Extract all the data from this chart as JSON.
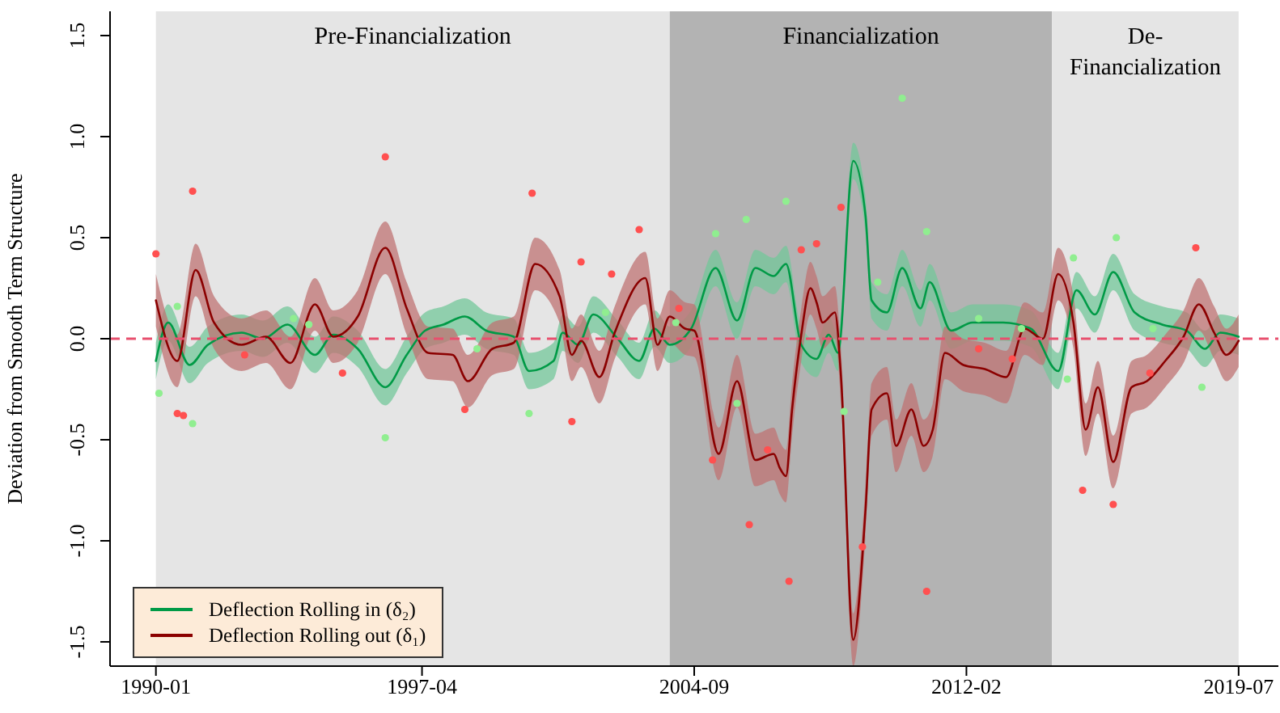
{
  "chart_data": {
    "type": "line",
    "ylabel": "Deviation from Smooth Term Structure",
    "xlim": [
      "1988-10",
      "2020-08"
    ],
    "xticks": [
      "1990-01",
      "1997-04",
      "2004-09",
      "2012-02",
      "2019-07"
    ],
    "ylim": [
      -1.62,
      1.62
    ],
    "yticks": [
      {
        "value": -1.5,
        "label": "-1.5"
      },
      {
        "value": -1,
        "label": "-1.0"
      },
      {
        "value": -0.5,
        "label": "-0.5"
      },
      {
        "value": 0,
        "label": "0.0"
      },
      {
        "value": 0.5,
        "label": "0.5"
      },
      {
        "value": 1,
        "label": "1.0"
      },
      {
        "value": 1.5,
        "label": "1.5"
      }
    ],
    "legend": "bottom left",
    "marker": "none",
    "line_style": "solid",
    "bands": [
      {
        "axis": "x",
        "from": "1990-01",
        "to": "2004-01",
        "label": "Pre-Financialization",
        "color": "#e5e5e5"
      },
      {
        "axis": "x",
        "from": "2004-01",
        "to": "2014-06",
        "label": "Financialization",
        "color": "#b3b3b3"
      },
      {
        "axis": "x",
        "from": "2014-06",
        "to": "2019-07",
        "label": "De-Financialization",
        "color": "#e5e5e5"
      }
    ],
    "ref_lines": [
      {
        "axis": "y",
        "value": 0,
        "color": "#e8506e",
        "line_style": "dashed"
      }
    ],
    "series": [
      {
        "name": "Deflection Rolling in (δ₂)",
        "color": "#009a46",
        "x": [
          "1990-01",
          "1990-05",
          "1990-12",
          "1991-06",
          "1992-05",
          "1992-12",
          "1993-08",
          "1994-05",
          "1994-11",
          "1995-07",
          "1996-04",
          "1996-11",
          "1997-05",
          "1997-11",
          "1998-06",
          "1999-01",
          "1999-10",
          "2000-03",
          "2000-11",
          "2001-02",
          "2001-07",
          "2001-12",
          "2002-08",
          "2003-03",
          "2003-08",
          "2004-01",
          "2004-08",
          "2005-04",
          "2005-11",
          "2006-05",
          "2006-11",
          "2007-03",
          "2007-08",
          "2008-01",
          "2008-05",
          "2008-08",
          "2009-01",
          "2009-05",
          "2009-07",
          "2009-12",
          "2010-05",
          "2010-11",
          "2011-02",
          "2011-09",
          "2012-04",
          "2013-02",
          "2013-11",
          "2014-08",
          "2015-02",
          "2015-08",
          "2016-02",
          "2016-09",
          "2017-06",
          "2018-02",
          "2018-08",
          "2019-01",
          "2019-07"
        ],
        "values": [
          -0.11,
          0.08,
          -0.13,
          -0.03,
          0.03,
          0,
          0.07,
          -0.08,
          0.02,
          -0.05,
          -0.24,
          -0.08,
          0.04,
          0.07,
          0.11,
          0.04,
          0.01,
          -0.16,
          -0.11,
          0.03,
          -0.03,
          0.12,
          0,
          -0.11,
          0.05,
          -0.03,
          0.05,
          0.35,
          0.09,
          0.35,
          0.31,
          0.37,
          -0.03,
          -0.1,
          0.02,
          -0.07,
          0.88,
          0.61,
          0.19,
          0.13,
          0.35,
          0.15,
          0.28,
          0.04,
          0.08,
          0.08,
          0.05,
          -0.16,
          0.24,
          0.12,
          0.33,
          0.13,
          0.07,
          0.04,
          -0.05,
          0.03,
          0.01
        ],
        "lower": [
          -0.2,
          -0.01,
          -0.22,
          -0.12,
          -0.06,
          -0.09,
          -0.02,
          -0.17,
          -0.07,
          -0.14,
          -0.33,
          -0.17,
          -0.05,
          -0.02,
          0.02,
          -0.05,
          -0.08,
          -0.25,
          -0.2,
          -0.06,
          -0.12,
          0.03,
          -0.09,
          -0.2,
          -0.04,
          -0.12,
          -0.04,
          0.26,
          0,
          0.26,
          0.22,
          0.28,
          -0.12,
          -0.19,
          -0.07,
          -0.16,
          0.79,
          0.52,
          0.1,
          0.04,
          0.26,
          0.06,
          0.19,
          -0.05,
          -0.01,
          -0.01,
          -0.04,
          -0.25,
          0.15,
          0.03,
          0.24,
          0.04,
          -0.02,
          -0.05,
          -0.14,
          -0.06,
          -0.08
        ],
        "upper": [
          -0.02,
          0.17,
          -0.04,
          0.06,
          0.12,
          0.09,
          0.16,
          0.01,
          0.11,
          0.04,
          -0.15,
          0.01,
          0.13,
          0.16,
          0.2,
          0.13,
          0.1,
          -0.07,
          -0.02,
          0.12,
          0.06,
          0.21,
          0.09,
          -0.02,
          0.14,
          0.06,
          0.14,
          0.44,
          0.18,
          0.44,
          0.4,
          0.46,
          0.06,
          -0.01,
          0.11,
          0.02,
          0.97,
          0.7,
          0.28,
          0.22,
          0.44,
          0.24,
          0.37,
          0.13,
          0.17,
          0.17,
          0.14,
          -0.07,
          0.33,
          0.21,
          0.42,
          0.22,
          0.16,
          0.13,
          0.04,
          0.12,
          0.1
        ]
      },
      {
        "name": "Deflection Rolling out (δ₁)",
        "color": "#8b0000",
        "x": [
          "1990-01",
          "1990-08",
          "1991-02",
          "1991-08",
          "1992-05",
          "1993-01",
          "1993-09",
          "1994-05",
          "1994-11",
          "1995-07",
          "1996-04",
          "1996-11",
          "1997-06",
          "1998-02",
          "1998-07",
          "1999-03",
          "1999-10",
          "2000-05",
          "2001-01",
          "2001-05",
          "2001-08",
          "2002-02",
          "2002-07",
          "2003-05",
          "2003-09",
          "2004-01",
          "2004-06",
          "2004-09",
          "2005-05",
          "2005-11",
          "2006-05",
          "2006-11",
          "2007-01",
          "2007-03",
          "2007-05",
          "2007-08",
          "2007-11",
          "2008-01",
          "2008-03",
          "2008-07",
          "2008-09",
          "2009-01",
          "2009-05",
          "2009-07",
          "2009-12",
          "2010-03",
          "2010-08",
          "2010-12",
          "2011-03",
          "2011-07",
          "2012-01",
          "2012-08",
          "2013-03",
          "2013-09",
          "2014-03",
          "2014-08",
          "2015-01",
          "2015-05",
          "2015-09",
          "2016-02",
          "2016-08",
          "2017-01",
          "2017-07",
          "2018-01",
          "2018-06",
          "2018-11",
          "2019-03",
          "2019-07"
        ],
        "values": [
          0.19,
          -0.11,
          0.34,
          0.08,
          -0.03,
          0.01,
          -0.12,
          0.17,
          0.01,
          0.11,
          0.45,
          0.15,
          -0.07,
          -0.08,
          -0.21,
          -0.05,
          -0.02,
          0.37,
          0.21,
          -0.08,
          -0.01,
          -0.19,
          0.03,
          0.3,
          -0.03,
          0.11,
          0.05,
          0.04,
          -0.57,
          -0.21,
          -0.6,
          -0.57,
          -0.64,
          -0.68,
          -0.35,
          0.02,
          0.25,
          0.18,
          0.08,
          0.13,
          -0.19,
          -1.49,
          -0.85,
          -0.35,
          -0.27,
          -0.53,
          -0.35,
          -0.53,
          -0.45,
          -0.07,
          -0.13,
          -0.15,
          -0.19,
          0.05,
          0,
          0.32,
          0.08,
          -0.45,
          -0.24,
          -0.61,
          -0.24,
          -0.21,
          -0.11,
          0.01,
          0.17,
          0.03,
          -0.08,
          -0.01
        ],
        "lower": [
          0.06,
          -0.24,
          0.21,
          -0.05,
          -0.16,
          -0.12,
          -0.25,
          0.04,
          -0.12,
          -0.02,
          0.32,
          0.02,
          -0.2,
          -0.21,
          -0.34,
          -0.18,
          -0.15,
          0.24,
          0.08,
          -0.21,
          -0.14,
          -0.32,
          -0.1,
          0.17,
          -0.16,
          -0.02,
          -0.08,
          -0.09,
          -0.7,
          -0.34,
          -0.73,
          -0.7,
          -0.77,
          -0.81,
          -0.48,
          -0.11,
          0.12,
          0.05,
          -0.05,
          0,
          -0.32,
          -1.62,
          -0.98,
          -0.48,
          -0.4,
          -0.66,
          -0.48,
          -0.66,
          -0.58,
          -0.2,
          -0.26,
          -0.28,
          -0.32,
          -0.08,
          -0.13,
          0.19,
          -0.05,
          -0.58,
          -0.37,
          -0.74,
          -0.37,
          -0.34,
          -0.24,
          -0.12,
          0.04,
          -0.1,
          -0.21,
          -0.14
        ],
        "upper": [
          0.32,
          0.02,
          0.47,
          0.21,
          0.1,
          0.14,
          0.01,
          0.3,
          0.14,
          0.24,
          0.58,
          0.28,
          0.06,
          0.05,
          -0.08,
          0.08,
          0.11,
          0.5,
          0.34,
          0.05,
          0.12,
          -0.06,
          0.16,
          0.43,
          0.1,
          0.24,
          0.18,
          0.17,
          -0.44,
          -0.08,
          -0.47,
          -0.44,
          -0.51,
          -0.55,
          -0.22,
          0.15,
          0.38,
          0.31,
          0.21,
          0.26,
          -0.06,
          -1.36,
          -0.72,
          -0.22,
          -0.14,
          -0.4,
          -0.22,
          -0.4,
          -0.32,
          0.06,
          0,
          -0.02,
          -0.06,
          0.18,
          0.13,
          0.45,
          0.21,
          -0.32,
          -0.11,
          -0.48,
          -0.11,
          -0.08,
          0.02,
          0.14,
          0.3,
          0.16,
          0.05,
          0.12
        ]
      },
      {
        "type": "scatter",
        "color": "#ff5050",
        "marker": "circle",
        "x": [
          "1990-01",
          "1991-01",
          "1990-08",
          "1990-10",
          "1996-04",
          "2000-04",
          "2003-03",
          "2001-05",
          "1998-06",
          "2008-09",
          "2007-04",
          "2011-01",
          "2009-04",
          "2016-02",
          "2015-04",
          "2018-05",
          "2008-01",
          "2007-08",
          "2005-03",
          "2006-03",
          "2006-09",
          "2012-06",
          "2013-05",
          "2017-02",
          "2002-06",
          "2001-08",
          "2004-04",
          "1995-02",
          "1992-06"
        ],
        "values": [
          0.42,
          0.73,
          -0.37,
          -0.38,
          0.9,
          0.72,
          0.54,
          -0.41,
          -0.35,
          0.65,
          -1.2,
          -1.25,
          -1.03,
          -0.82,
          -0.75,
          0.45,
          0.47,
          0.44,
          -0.6,
          -0.92,
          -0.55,
          -0.05,
          -0.1,
          -0.17,
          0.32,
          0.38,
          0.15,
          -0.17,
          -0.08
        ]
      },
      {
        "type": "scatter",
        "color": "#90ee90",
        "marker": "circle",
        "x": [
          "2010-05",
          "2007-03",
          "2005-04",
          "2006-02",
          "1996-04",
          "1991-01",
          "2011-01",
          "2016-03",
          "2015-01",
          "2018-07",
          "2000-03",
          "2008-10",
          "2005-11",
          "1990-02",
          "1990-08",
          "1993-10",
          "2002-04",
          "2012-06",
          "2013-08",
          "2017-03",
          "2009-09",
          "2004-03",
          "1998-10",
          "1994-03",
          "2014-11"
        ],
        "values": [
          1.19,
          0.68,
          0.52,
          0.59,
          -0.49,
          -0.42,
          0.53,
          0.5,
          0.4,
          -0.24,
          -0.37,
          -0.36,
          -0.32,
          -0.27,
          0.16,
          0.1,
          0.13,
          0.1,
          0.05,
          0.05,
          0.28,
          0.08,
          -0.05,
          0.07,
          -0.2
        ]
      }
    ]
  }
}
